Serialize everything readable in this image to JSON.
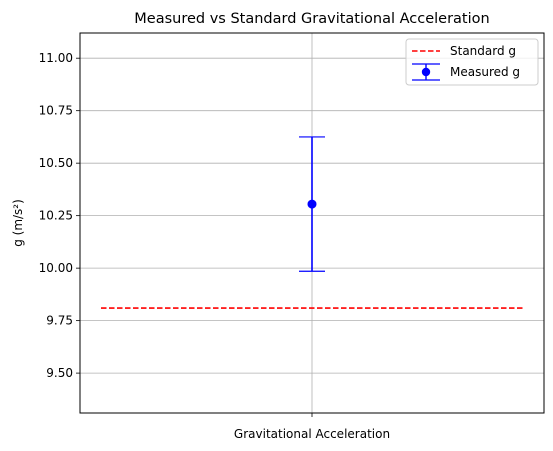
{
  "chart_data": {
    "type": "scatter",
    "title": "Measured vs Standard Gravitational Acceleration",
    "xlabel": "Gravitational Acceleration",
    "ylabel": "g (m/s²)",
    "ylim": [
      9.31,
      11.12
    ],
    "yticks": [
      9.5,
      9.75,
      10.0,
      10.25,
      10.5,
      10.75,
      11.0
    ],
    "ytick_labels": [
      "9.50",
      "9.75",
      "10.00",
      "10.25",
      "10.50",
      "10.75",
      "11.00"
    ],
    "grid": true,
    "legend_position": "top-right",
    "series": [
      {
        "name": "Standard g",
        "kind": "reference-line",
        "value": 9.81,
        "color": "#ff0000",
        "line_style": "dashed"
      },
      {
        "name": "Measured g",
        "kind": "point-with-error",
        "value": 10.305,
        "error": 0.32,
        "color": "#0000ff"
      }
    ]
  }
}
